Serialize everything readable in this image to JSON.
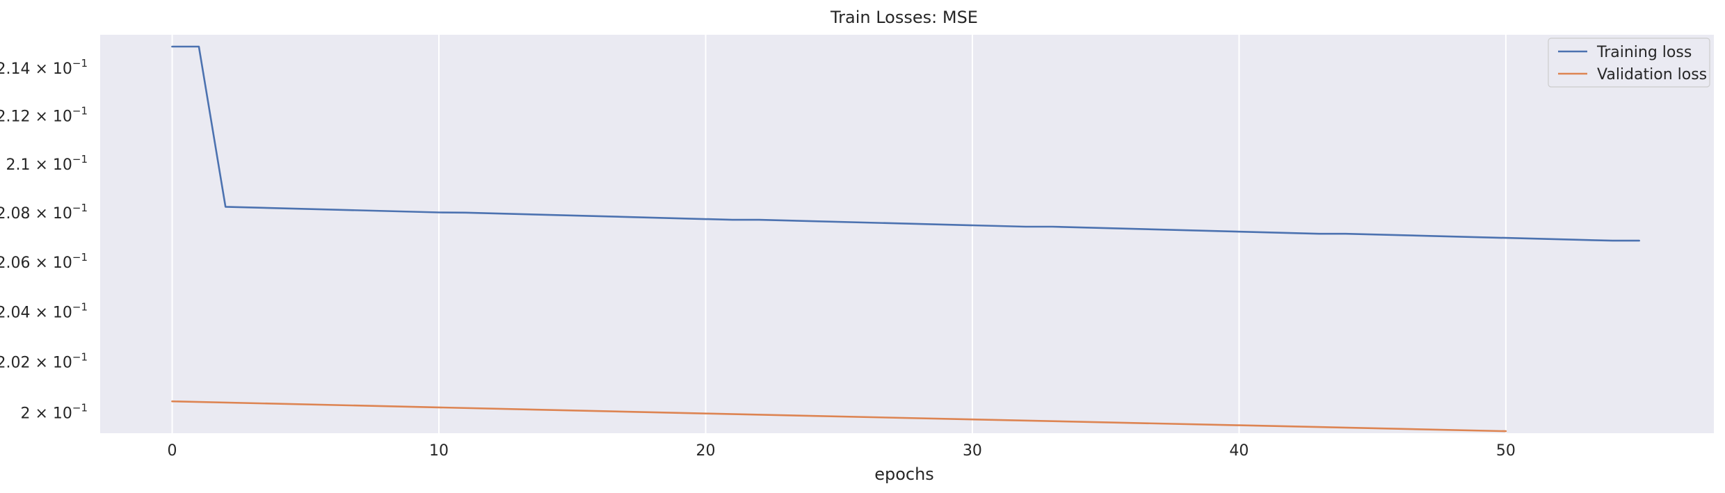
{
  "chart_data": {
    "type": "line",
    "title": "Train Losses:  MSE",
    "xlabel": "epochs",
    "ylabel": "",
    "xlim": [
      -2.7,
      57.8
    ],
    "ylim": [
      0.1992,
      0.2154
    ],
    "yscale": "log",
    "xticks": [
      0,
      10,
      20,
      30,
      40,
      50
    ],
    "xtick_labels": [
      "0",
      "10",
      "20",
      "30",
      "40",
      "50"
    ],
    "yticks": [
      {
        "value": 0.214,
        "mantissa": "2.14"
      },
      {
        "value": 0.212,
        "mantissa": "2.12"
      },
      {
        "value": 0.21,
        "mantissa": "2.1"
      },
      {
        "value": 0.208,
        "mantissa": "2.08"
      },
      {
        "value": 0.206,
        "mantissa": "2.06"
      },
      {
        "value": 0.204,
        "mantissa": "2.04"
      },
      {
        "value": 0.202,
        "mantissa": "2.02"
      },
      {
        "value": 0.2,
        "mantissa": "2"
      }
    ],
    "ytick_base": "10",
    "ytick_exponent": "−1",
    "ytick_times": "×",
    "grid": "x-only",
    "legend_position": "top-right",
    "series": [
      {
        "name": "Training loss",
        "color": "#4c72b0",
        "x": [
          0,
          1,
          2,
          10,
          11,
          21,
          22,
          32,
          33,
          43,
          44,
          54,
          55
        ],
        "y": [
          0.2149,
          0.2149,
          0.20825,
          0.20802,
          0.20801,
          0.20772,
          0.20772,
          0.20744,
          0.20744,
          0.20715,
          0.20715,
          0.20687,
          0.20687
        ]
      },
      {
        "name": "Validation loss",
        "color": "#dd8452",
        "x": [
          0,
          10,
          20,
          30,
          40,
          50
        ],
        "y": [
          0.20045,
          0.20021,
          0.19997,
          0.19974,
          0.19951,
          0.19928
        ]
      }
    ]
  }
}
